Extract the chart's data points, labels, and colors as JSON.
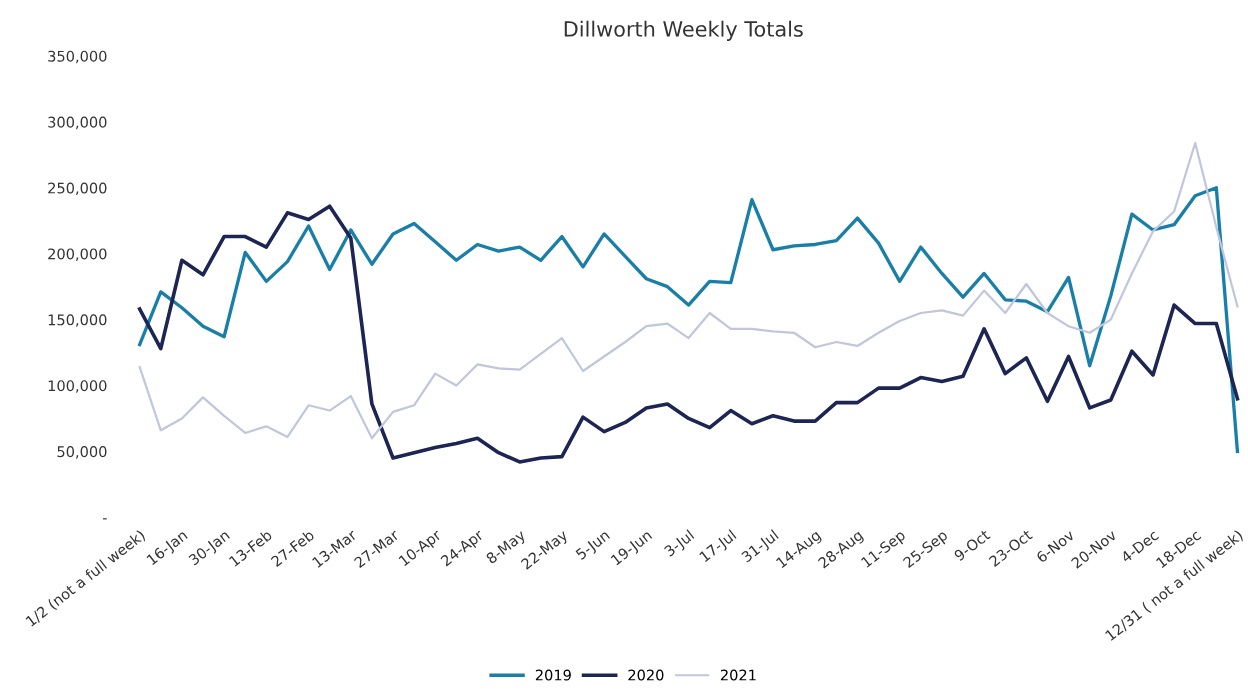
{
  "chart_data": {
    "type": "line",
    "title": "Dillworth Weekly Totals",
    "categories": [
      "1/2 (not a full week)",
      null,
      "16-Jan",
      null,
      "30-Jan",
      null,
      "13-Feb",
      null,
      "27-Feb",
      null,
      "13-Mar",
      null,
      "27-Mar",
      null,
      "10-Apr",
      null,
      "24-Apr",
      null,
      "8-May",
      null,
      "22-May",
      null,
      "5-Jun",
      null,
      "19-Jun",
      null,
      "3-Jul",
      null,
      "17-Jul",
      null,
      "31-Jul",
      null,
      "14-Aug",
      null,
      "28-Aug",
      null,
      "11-Sep",
      null,
      "25-Sep",
      null,
      "9-Oct",
      null,
      "23-Oct",
      null,
      "6-Nov",
      null,
      "20-Nov",
      null,
      "4-Dec",
      null,
      "18-Dec",
      null,
      "12/31 ( not a full week)"
    ],
    "series": [
      {
        "name": "2019",
        "color": "#1a7fa8",
        "values": [
          131000,
          171000,
          159000,
          145000,
          137000,
          201000,
          179000,
          194000,
          221000,
          188000,
          218000,
          192000,
          215000,
          223000,
          209000,
          195000,
          207000,
          202000,
          205000,
          195000,
          213000,
          190000,
          215000,
          198000,
          181000,
          175000,
          161000,
          179000,
          178000,
          241000,
          203000,
          206000,
          207000,
          210000,
          227000,
          208000,
          179000,
          205000,
          185000,
          167000,
          185000,
          165000,
          164000,
          156000,
          182000,
          115000,
          168000,
          230000,
          218000,
          222000,
          244000,
          250000,
          50000
        ]
      },
      {
        "name": "2020",
        "color": "#1c2553",
        "values": [
          158000,
          128000,
          195000,
          184000,
          213000,
          213000,
          205000,
          231000,
          226000,
          236000,
          212000,
          86000,
          45000,
          49000,
          53000,
          56000,
          60000,
          49000,
          42000,
          45000,
          46000,
          76000,
          65000,
          72000,
          83000,
          86000,
          75000,
          68000,
          81000,
          71000,
          77000,
          73000,
          73000,
          87000,
          87000,
          98000,
          98000,
          106000,
          103000,
          107000,
          143000,
          109000,
          121000,
          88000,
          122000,
          83000,
          89000,
          126000,
          108000,
          161000,
          147000,
          147000,
          90000
        ]
      },
      {
        "name": "2021",
        "color": "#c0c6dc",
        "values": [
          114000,
          66000,
          75000,
          91000,
          77000,
          64000,
          69000,
          61000,
          85000,
          81000,
          92000,
          60000,
          80000,
          85000,
          109000,
          100000,
          116000,
          113000,
          112000,
          124000,
          136000,
          111000,
          122000,
          133000,
          145000,
          147000,
          136000,
          155000,
          143000,
          143000,
          141000,
          140000,
          129000,
          133000,
          130000,
          140000,
          149000,
          155000,
          157000,
          153000,
          172000,
          155000,
          177000,
          155000,
          145000,
          140000,
          150000,
          185000,
          217000,
          232000,
          284000,
          220000,
          160000
        ]
      }
    ],
    "ylim": [
      0,
      350000
    ],
    "yticks": [
      {
        "value": 0,
        "label": "-"
      },
      {
        "value": 50000,
        "label": "50,000"
      },
      {
        "value": 100000,
        "label": "100,000"
      },
      {
        "value": 150000,
        "label": "150,000"
      },
      {
        "value": 200000,
        "label": "200,000"
      },
      {
        "value": 250000,
        "label": "250,000"
      },
      {
        "value": 300000,
        "label": "300,000"
      },
      {
        "value": 350000,
        "label": "350,000"
      }
    ],
    "grid": false,
    "legend": "bottom",
    "marker": "none",
    "line_style": "solid"
  }
}
